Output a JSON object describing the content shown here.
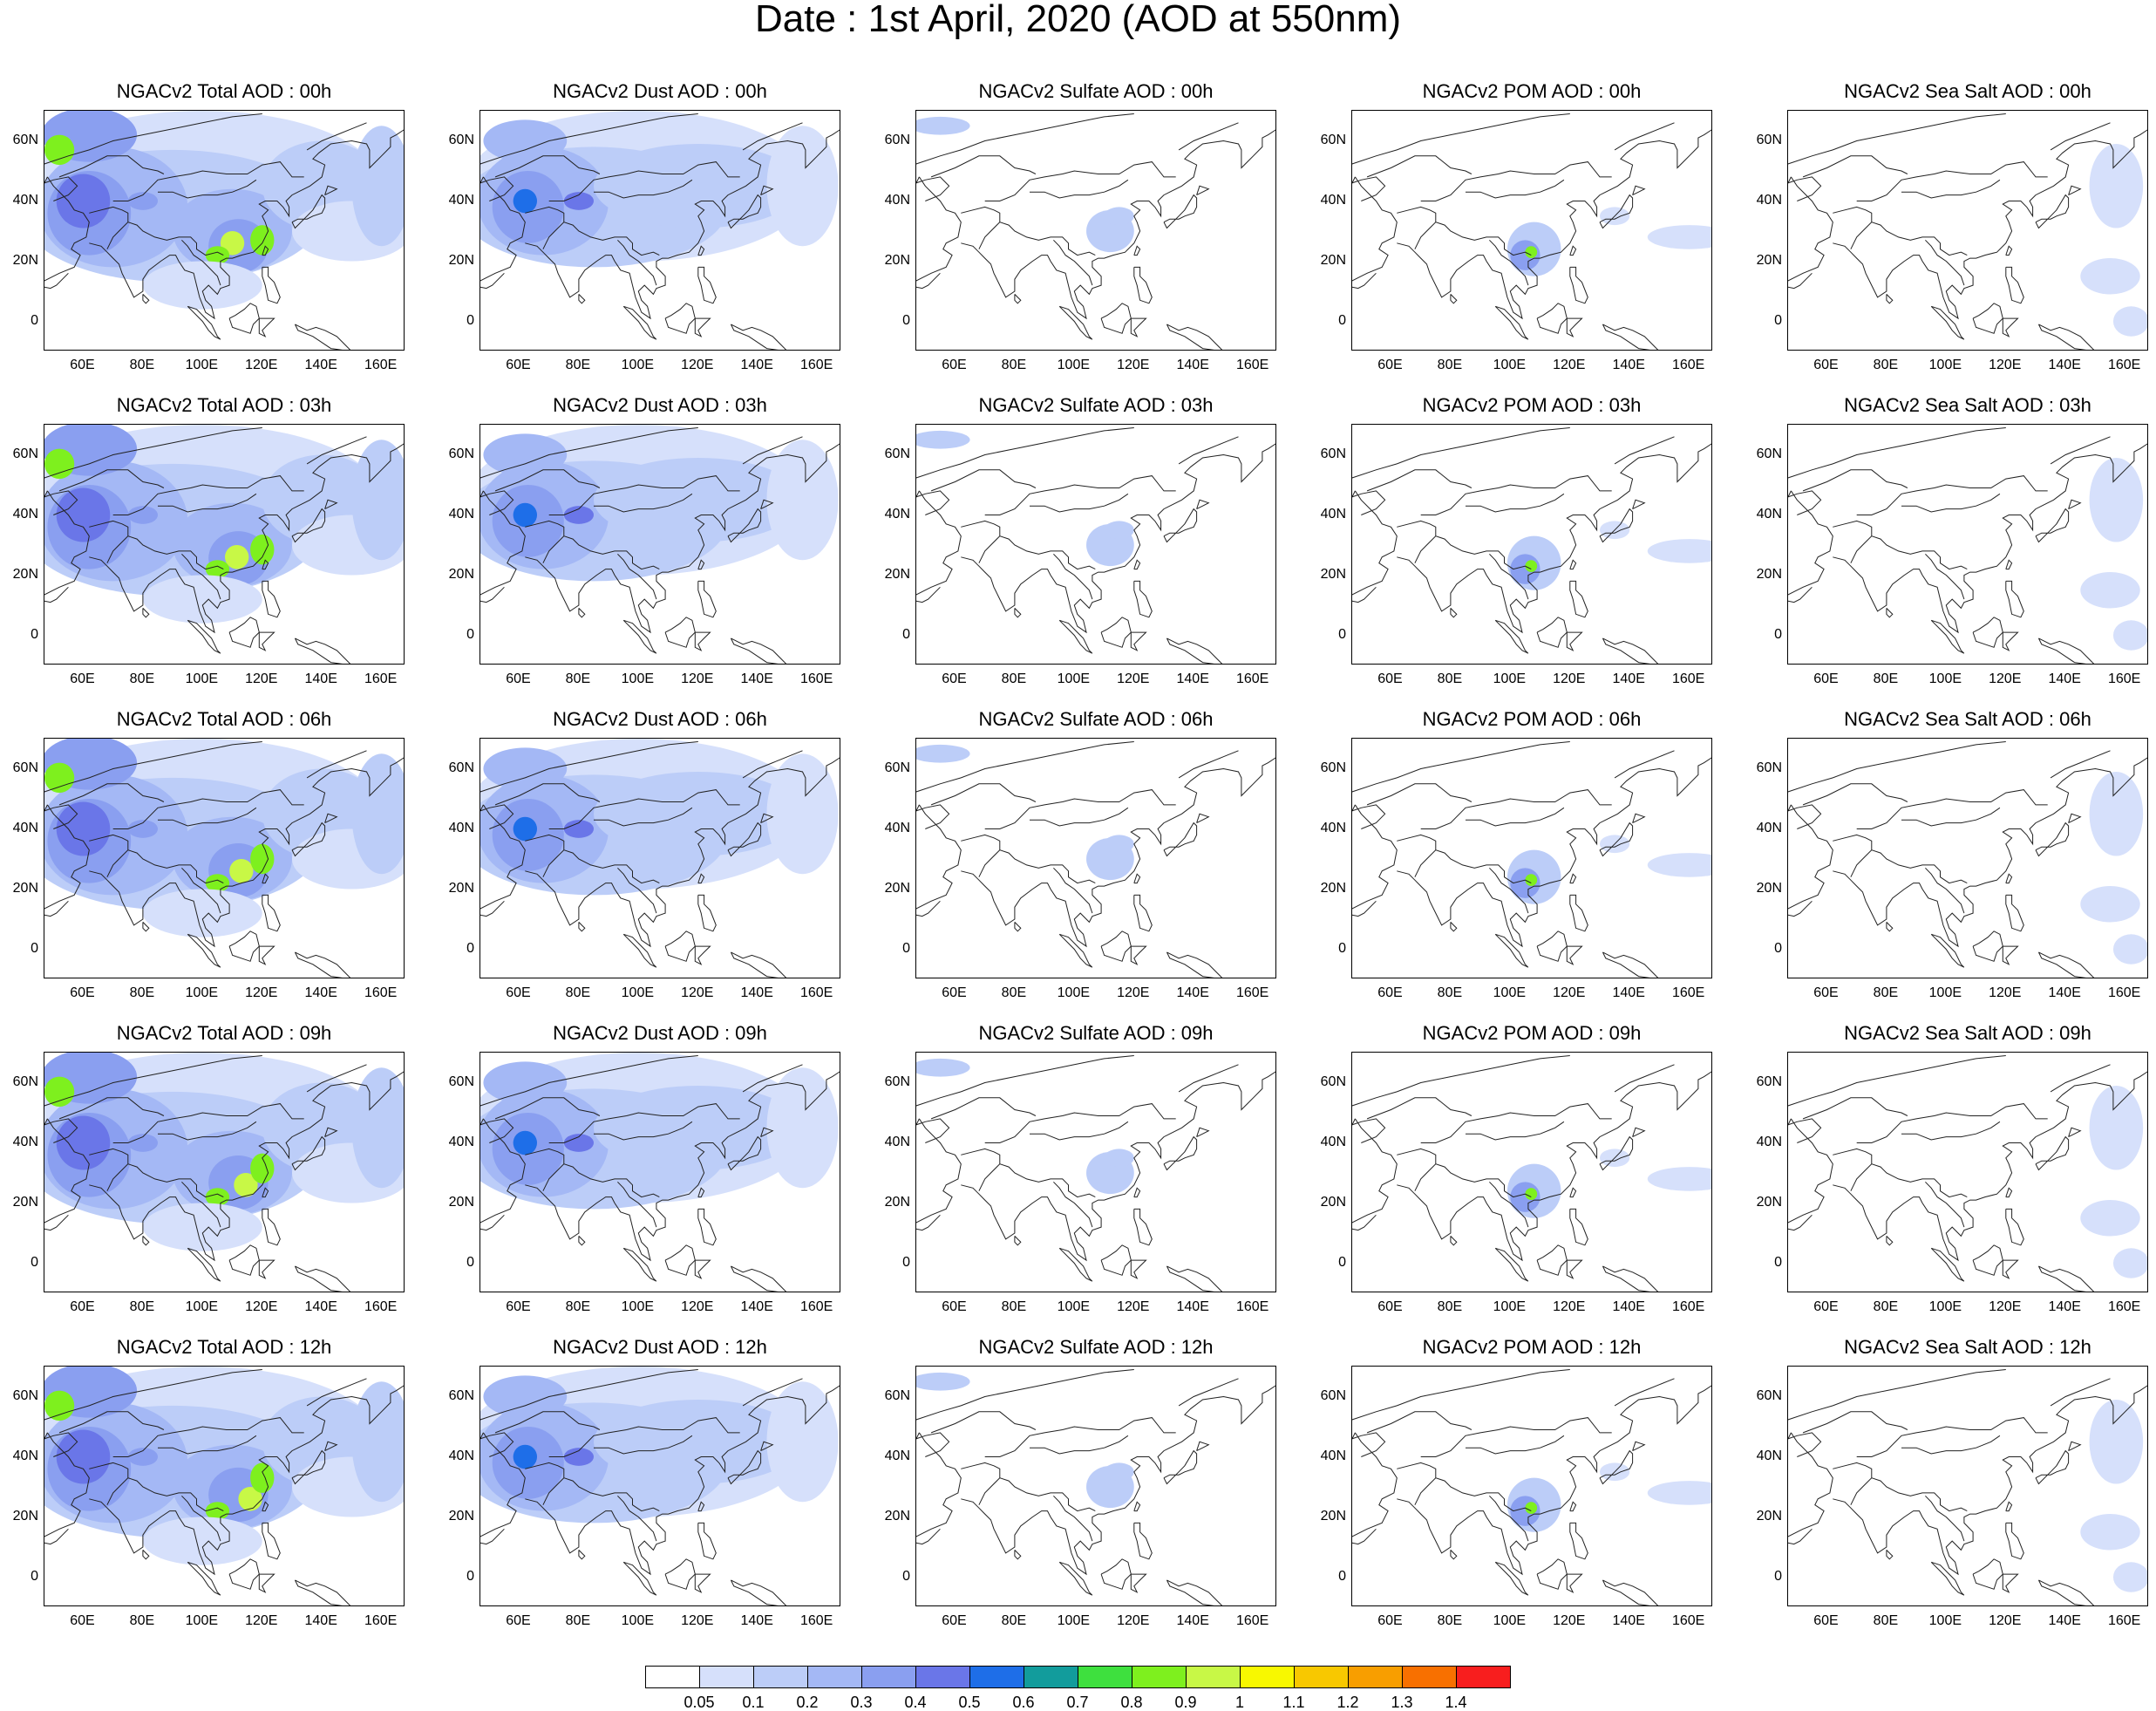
{
  "title": "Date : 1st April, 2020 (AOD at 550nm)",
  "panels": [
    [
      "NGACv2 Total AOD : 00h",
      "NGACv2 Dust AOD : 00h",
      "NGACv2 Sulfate AOD : 00h",
      "NGACv2 POM AOD : 00h",
      "NGACv2 Sea Salt AOD : 00h"
    ],
    [
      "NGACv2 Total AOD : 03h",
      "NGACv2 Dust AOD : 03h",
      "NGACv2 Sulfate AOD : 03h",
      "NGACv2 POM AOD : 03h",
      "NGACv2 Sea Salt AOD : 03h"
    ],
    [
      "NGACv2 Total AOD : 06h",
      "NGACv2 Dust AOD : 06h",
      "NGACv2 Sulfate AOD : 06h",
      "NGACv2 POM AOD : 06h",
      "NGACv2 Sea Salt AOD : 06h"
    ],
    [
      "NGACv2 Total AOD : 09h",
      "NGACv2 Dust AOD : 09h",
      "NGACv2 Sulfate AOD : 09h",
      "NGACv2 POM AOD : 09h",
      "NGACv2 Sea Salt  AOD : 09h"
    ],
    [
      "NGACv2 Total AOD  : 12h",
      "NGACv2 Dust AOD : 12h",
      "NGACv2 Sulfate AOD : 12h",
      "NGACv2 POM  AOD : 12h",
      "NGACv2 Sea Salt  AOD : 12h"
    ]
  ],
  "lat_ticks": [
    "60N",
    "40N",
    "20N",
    "0"
  ],
  "lon_ticks": [
    "60E",
    "80E",
    "100E",
    "120E",
    "140E",
    "160E"
  ],
  "colorbar": {
    "colors": [
      "#ffffff",
      "#d6e0fb",
      "#bccdf8",
      "#a4b8f5",
      "#8a9ff0",
      "#6a76e8",
      "#1e6ee8",
      "#129c9c",
      "#3ee03e",
      "#7ef01e",
      "#c8f846",
      "#f8f800",
      "#f8c800",
      "#f89e00",
      "#f87000",
      "#f81e1e"
    ],
    "labels": [
      "0.05",
      "0.1",
      "0.2",
      "0.3",
      "0.4",
      "0.5",
      "0.6",
      "0.7",
      "0.8",
      "0.9",
      "1",
      "1.1",
      "1.2",
      "1.3",
      "1.4"
    ]
  }
}
